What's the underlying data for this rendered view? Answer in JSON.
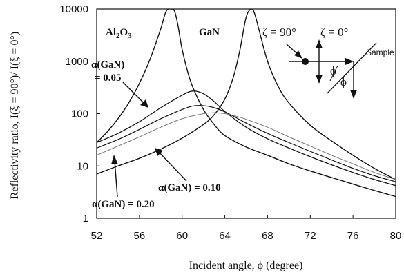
{
  "chart_data": {
    "type": "line",
    "xlabel": "Incident angle, ϕ (degree)",
    "ylabel": "Reflectivity ratio, I(ξ = 90°)/ I(ξ = 0°)",
    "xlim": [
      52,
      80
    ],
    "ylim": [
      1,
      10000
    ],
    "yscale": "log",
    "x_ticks": [
      "52",
      "56",
      "60",
      "64",
      "68",
      "72",
      "76",
      "80"
    ],
    "y_ticks": [
      "1",
      "10",
      "100",
      "1000",
      "10000"
    ],
    "grid": false,
    "series": [
      {
        "label": "Al2O3",
        "color": "#111111",
        "width": 1.4,
        "x": [
          52,
          53,
          54,
          55,
          56,
          57,
          58,
          58.5,
          59,
          59.3,
          59.6,
          60,
          60.5,
          61,
          62,
          63,
          64,
          66,
          68,
          70,
          72,
          74,
          76,
          78,
          80
        ],
        "y": [
          28,
          45,
          80,
          160,
          380,
          1100,
          4200,
          9000,
          10000,
          9000,
          5000,
          1700,
          650,
          320,
          120,
          62,
          38,
          23,
          16,
          11,
          8,
          6,
          4.5,
          3.4,
          2.6
        ]
      },
      {
        "label": "GaN",
        "color": "#111111",
        "width": 1.4,
        "x": [
          52,
          54,
          56,
          58,
          60,
          62,
          63,
          64,
          64.8,
          65.4,
          66,
          66.5,
          66.8,
          67.2,
          68,
          69,
          70,
          72,
          74,
          76,
          78,
          80
        ],
        "y": [
          7,
          10,
          14,
          21,
          34,
          62,
          95,
          190,
          500,
          1600,
          7000,
          10000,
          8000,
          4000,
          1000,
          330,
          160,
          60,
          30,
          16,
          9,
          5.5
        ]
      },
      {
        "label": "α(GaN) = 0.05",
        "color": "#111111",
        "width": 1.3,
        "x": [
          52,
          54,
          56,
          58,
          60,
          61,
          62,
          63,
          64,
          66,
          68,
          70,
          72,
          74,
          76,
          78,
          80
        ],
        "y": [
          28,
          42,
          70,
          130,
          225,
          270,
          240,
          170,
          110,
          55,
          33,
          22,
          15,
          10.5,
          7.5,
          5.5,
          4.2
        ]
      },
      {
        "label": "α(GaN) = 0.10",
        "color": "#111111",
        "width": 1.2,
        "x": [
          52,
          54,
          56,
          58,
          60,
          61,
          62,
          63,
          64,
          65,
          66,
          68,
          70,
          72,
          74,
          76,
          78,
          80
        ],
        "y": [
          22,
          32,
          50,
          80,
          120,
          140,
          142,
          130,
          108,
          85,
          66,
          42,
          28,
          19,
          13,
          9,
          6.5,
          5
        ]
      },
      {
        "label": "α(GaN) = 0.20",
        "color": "#777777",
        "width": 1.0,
        "x": [
          52,
          54,
          56,
          58,
          60,
          62,
          63,
          64,
          65,
          66,
          68,
          70,
          72,
          74,
          76,
          78,
          80
        ],
        "y": [
          16,
          24,
          36,
          55,
          80,
          100,
          104,
          100,
          90,
          78,
          55,
          36,
          24,
          16,
          11,
          7.5,
          5.5
        ]
      }
    ],
    "annotations": {
      "al2o3_prefix": "Al",
      "al2o3_sub2": "2",
      "al2o3_o": "O",
      "al2o3_sub3": "3",
      "gan": "GaN",
      "zeta90": "ζ = 90°",
      "zeta0": "ζ = 0°",
      "sample": "Sample",
      "phi": "ϕ",
      "alpha005_line1": "α(GaN)",
      "alpha005_line2": "= 0.05",
      "alpha010": "α(GaN) = 0.10",
      "alpha020": "α(GaN) = 0.20"
    }
  }
}
